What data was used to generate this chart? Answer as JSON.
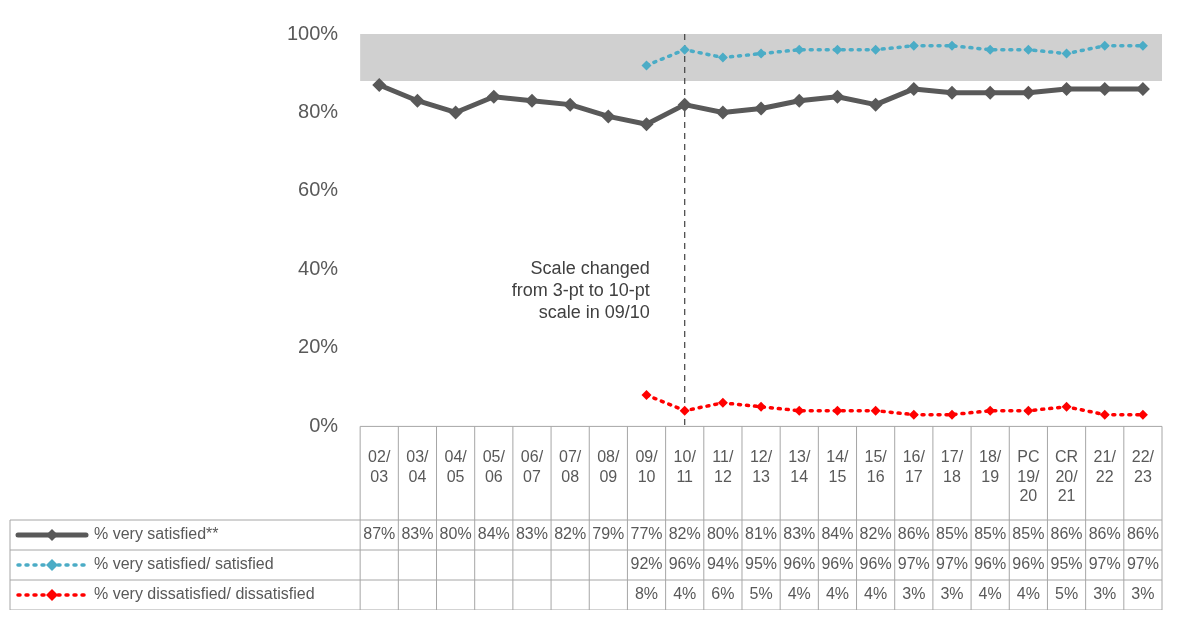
{
  "chart_data": {
    "type": "line",
    "categories": [
      "02/\n03",
      "03/\n04",
      "04/\n05",
      "05/\n06",
      "06/\n07",
      "07/\n08",
      "08/\n09",
      "09/\n10",
      "10/\n11",
      "11/\n12",
      "12/\n13",
      "13/\n14",
      "14/\n15",
      "15/\n16",
      "16/\n17",
      "17/\n18",
      "18/\n19",
      "PC\n19/\n20",
      "CR\n20/\n21",
      "21/\n22",
      "22/\n23"
    ],
    "series": [
      {
        "name": "% very satisfied**",
        "color": "#595959",
        "line_style": "solid",
        "values": [
          87,
          83,
          80,
          84,
          83,
          82,
          79,
          77,
          82,
          80,
          81,
          83,
          84,
          82,
          86,
          85,
          85,
          85,
          86,
          86,
          86
        ],
        "value_labels": [
          "87%",
          "83%",
          "80%",
          "84%",
          "83%",
          "82%",
          "79%",
          "77%",
          "82%",
          "80%",
          "81%",
          "83%",
          "84%",
          "82%",
          "86%",
          "85%",
          "85%",
          "85%",
          "86%",
          "86%",
          "86%"
        ]
      },
      {
        "name": "% very satisfied/ satisfied",
        "color": "#4bacc6",
        "line_style": "dotted",
        "values": [
          null,
          null,
          null,
          null,
          null,
          null,
          null,
          92,
          96,
          94,
          95,
          96,
          96,
          96,
          97,
          97,
          96,
          96,
          95,
          97,
          97
        ],
        "value_labels": [
          null,
          null,
          null,
          null,
          null,
          null,
          null,
          "92%",
          "96%",
          "94%",
          "95%",
          "96%",
          "96%",
          "96%",
          "97%",
          "97%",
          "96%",
          "96%",
          "95%",
          "97%",
          "97%"
        ]
      },
      {
        "name": "% very dissatisfied/ dissatisfied",
        "color": "#ff0000",
        "line_style": "dotted",
        "values": [
          null,
          null,
          null,
          null,
          null,
          null,
          null,
          8,
          4,
          6,
          5,
          4,
          4,
          4,
          3,
          3,
          4,
          4,
          5,
          3,
          3
        ],
        "value_labels": [
          null,
          null,
          null,
          null,
          null,
          null,
          null,
          "8%",
          "4%",
          "6%",
          "5%",
          "4%",
          "4%",
          "4%",
          "3%",
          "3%",
          "4%",
          "4%",
          "5%",
          "3%",
          "3%"
        ]
      }
    ],
    "ylim": [
      0,
      100
    ],
    "yticks": [
      {
        "value": 0,
        "label": "0%"
      },
      {
        "value": 20,
        "label": "20%"
      },
      {
        "value": 40,
        "label": "40%"
      },
      {
        "value": 60,
        "label": "60%"
      },
      {
        "value": 80,
        "label": "80%"
      },
      {
        "value": 100,
        "label": "100%"
      }
    ],
    "bands": [
      {
        "axis": "y",
        "from": 88,
        "to": 100,
        "color": "#d0d0d0"
      }
    ],
    "ref_lines": [
      {
        "axis": "x",
        "value": "10/\n11",
        "label": "Scale changed\nfrom 3-pt to 10-pt\nscale in 09/10",
        "color": "#404040",
        "line_style": "dashed"
      }
    ],
    "marker": "diamond",
    "grid": false,
    "legend": "bottom"
  }
}
